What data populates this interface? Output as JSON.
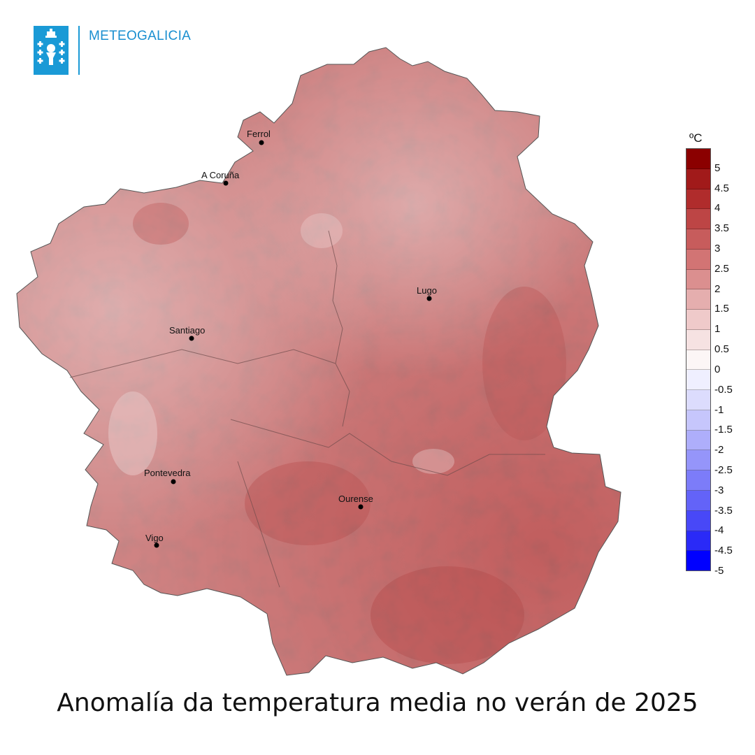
{
  "header": {
    "brand": "METEOGALICIA",
    "logo_icon": "xunta-galicia-shield-icon"
  },
  "map": {
    "cities": [
      {
        "name": "Ferrol"
      },
      {
        "name": "A Coruña"
      },
      {
        "name": "Lugo"
      },
      {
        "name": "Santiago"
      },
      {
        "name": "Pontevedra"
      },
      {
        "name": "Ourense"
      },
      {
        "name": "Vigo"
      }
    ]
  },
  "legend": {
    "unit": "ºC",
    "labels": [
      "5",
      "4.5",
      "4",
      "3.5",
      "3",
      "2.5",
      "2",
      "1.5",
      "1",
      "0.5",
      "0",
      "-0.5",
      "-1",
      "-1.5",
      "-2",
      "-2.5",
      "-3",
      "-3.5",
      "-4",
      "-4.5",
      "-5"
    ],
    "colors": [
      "#8b0000",
      "#a11a1a",
      "#b02c2c",
      "#bd4545",
      "#c75c5c",
      "#d27474",
      "#db8f8f",
      "#e5aeae",
      "#efcaca",
      "#f6e2e2",
      "#fcf6f6",
      "#efefff",
      "#dcdcfd",
      "#c6c6fc",
      "#aeaefb",
      "#9595fa",
      "#7c7cf9",
      "#6363f8",
      "#4848f7",
      "#2a2af7",
      "#0000ff"
    ]
  },
  "title": "Anomalía da temperatura media no verán de 2025"
}
